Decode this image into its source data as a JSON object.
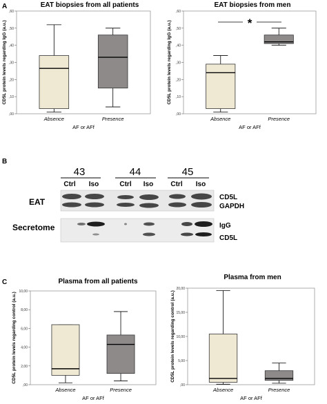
{
  "panel_labels": [
    "A",
    "B",
    "C"
  ],
  "chart_data": [
    {
      "type": "boxplot",
      "title": "EAT biopsies from all patients",
      "ylabel": "CD5L protein levels regarding IgG (a.u.)",
      "xlabel": "AF or AFf",
      "categories": [
        "Absence",
        "Presence"
      ],
      "ylim": [
        0,
        0.6
      ],
      "yticks": [
        0,
        0.1,
        0.2,
        0.3,
        0.4,
        0.5,
        0.6
      ],
      "ytick_labels": [
        ",00",
        ",10",
        ",20",
        ",30",
        ",40",
        ",50",
        ",60"
      ],
      "boxes": [
        {
          "category": "Absence",
          "min": 0.01,
          "q1": 0.03,
          "median": 0.265,
          "q3": 0.34,
          "max": 0.52,
          "color": "#efe9d4"
        },
        {
          "category": "Presence",
          "min": 0.04,
          "q1": 0.15,
          "median": 0.33,
          "q3": 0.46,
          "max": 0.5,
          "color": "#8e8a8a"
        }
      ],
      "significance": ""
    },
    {
      "type": "boxplot",
      "title": "EAT biopsies from men",
      "ylabel": "CD5L protein levels regarding IgG (a.u.)",
      "xlabel": "AF or AFf",
      "categories": [
        "Absence",
        "Presence"
      ],
      "ylim": [
        0,
        0.6
      ],
      "yticks": [
        0,
        0.1,
        0.2,
        0.3,
        0.4,
        0.5,
        0.6
      ],
      "ytick_labels": [
        ",00",
        ",10",
        ",20",
        ",30",
        ",40",
        ",50",
        ",60"
      ],
      "boxes": [
        {
          "category": "Absence",
          "min": 0.01,
          "q1": 0.03,
          "median": 0.24,
          "q3": 0.29,
          "max": 0.34,
          "color": "#efe9d4"
        },
        {
          "category": "Presence",
          "min": 0.4,
          "q1": 0.41,
          "median": 0.42,
          "q3": 0.46,
          "max": 0.5,
          "color": "#8e8a8a"
        }
      ],
      "significance": "*"
    },
    {
      "type": "boxplot",
      "title": "Plasma from all patients",
      "ylabel": "CD5L protein levels regarding control (a.u.)",
      "xlabel": "AF or AFf",
      "categories": [
        "Absence",
        "Presence"
      ],
      "ylim": [
        0,
        10
      ],
      "yticks": [
        0,
        2,
        4,
        6,
        8,
        10
      ],
      "ytick_labels": [
        ",00",
        "2,00",
        "4,00",
        "6,00",
        "8,00",
        "10,00"
      ],
      "boxes": [
        {
          "category": "Absence",
          "min": 0.2,
          "q1": 1.0,
          "median": 1.7,
          "q3": 6.4,
          "max": 6.4,
          "color": "#efe9d4"
        },
        {
          "category": "Presence",
          "min": 0.4,
          "q1": 1.2,
          "median": 4.3,
          "q3": 5.3,
          "max": 7.8,
          "color": "#8e8a8a"
        }
      ],
      "significance": ""
    },
    {
      "type": "boxplot",
      "title": "Plasma from men",
      "ylabel": "CD5L protein levels regarding control (a.u.)",
      "xlabel": "AF or AFf",
      "categories": [
        "Absence",
        "Presence"
      ],
      "ylim": [
        0,
        20
      ],
      "yticks": [
        0,
        5,
        10,
        15,
        20
      ],
      "ytick_labels": [
        ",00",
        "5,00",
        "10,00",
        "15,00",
        "20,00"
      ],
      "boxes": [
        {
          "category": "Absence",
          "min": 0.1,
          "q1": 0.5,
          "median": 1.3,
          "q3": 10.5,
          "max": 19.5,
          "color": "#efe9d4"
        },
        {
          "category": "Presence",
          "min": 0.3,
          "q1": 0.9,
          "median": 1.3,
          "q3": 2.9,
          "max": 4.5,
          "color": "#8e8a8a"
        }
      ],
      "significance": ""
    }
  ],
  "blot": {
    "patients": [
      "43",
      "44",
      "45"
    ],
    "conditions": [
      "Ctrl",
      "Iso",
      "Ctrl",
      "Iso",
      "Ctrl",
      "Iso"
    ],
    "rows": [
      {
        "label": "EAT",
        "bands": [
          "CD5L",
          "GAPDH"
        ]
      },
      {
        "label": "Secretome",
        "bands": [
          "IgG",
          "CD5L"
        ]
      }
    ]
  }
}
